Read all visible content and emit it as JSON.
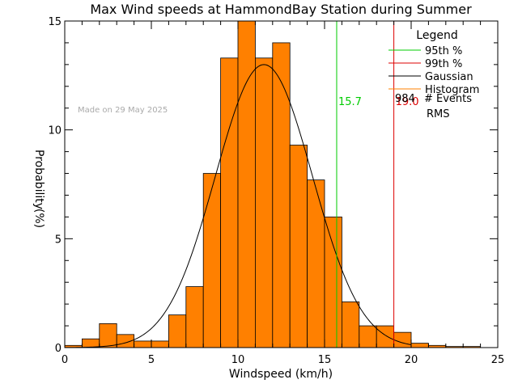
{
  "chart_data": {
    "type": "bar",
    "title": "Max Wind speeds at HammondBay Station during Summer",
    "xlabel": "Windspeed (km/h)",
    "ylabel_top": "Probability",
    "ylabel_bottom": "(%)",
    "watermark": "Made on 29 May 2025",
    "xlim": [
      0,
      25
    ],
    "ylim": [
      0,
      15
    ],
    "xticks": [
      0,
      5,
      10,
      15,
      20,
      25
    ],
    "yticks": [
      0,
      5,
      10,
      15
    ],
    "histogram": {
      "bin_width": 1,
      "bins": [
        {
          "x0": 0,
          "value": 0.1
        },
        {
          "x0": 1,
          "value": 0.4
        },
        {
          "x0": 2,
          "value": 1.1
        },
        {
          "x0": 3,
          "value": 0.6
        },
        {
          "x0": 4,
          "value": 0.3
        },
        {
          "x0": 5,
          "value": 0.3
        },
        {
          "x0": 6,
          "value": 1.5
        },
        {
          "x0": 7,
          "value": 2.8
        },
        {
          "x0": 8,
          "value": 8.0
        },
        {
          "x0": 9,
          "value": 13.3
        },
        {
          "x0": 10,
          "value": 15.0
        },
        {
          "x0": 11,
          "value": 13.3
        },
        {
          "x0": 12,
          "value": 14.0
        },
        {
          "x0": 13,
          "value": 9.3
        },
        {
          "x0": 14,
          "value": 7.7
        },
        {
          "x0": 15,
          "value": 6.0
        },
        {
          "x0": 16,
          "value": 2.1
        },
        {
          "x0": 17,
          "value": 1.0
        },
        {
          "x0": 18,
          "value": 1.0
        },
        {
          "x0": 19,
          "value": 0.7
        },
        {
          "x0": 20,
          "value": 0.2
        },
        {
          "x0": 21,
          "value": 0.1
        },
        {
          "x0": 22,
          "value": 0.05
        },
        {
          "x0": 23,
          "value": 0.05
        }
      ]
    },
    "gaussian": {
      "mean": 11.5,
      "sigma": 2.8,
      "peak": 13.0
    },
    "vlines": [
      {
        "x": 15.7,
        "label": "15.7",
        "color": "#00cc00"
      },
      {
        "x": 19.0,
        "label": "19.0",
        "color": "#dd0000"
      }
    ],
    "legend": {
      "title": "Legend",
      "items": [
        {
          "label": "95th %",
          "color": "#00cc00"
        },
        {
          "label": "99th %",
          "color": "#dd0000"
        },
        {
          "label": "Gaussian",
          "color": "#000000"
        },
        {
          "label": "Histogram",
          "color": "#ff8000"
        }
      ],
      "events_count": "984",
      "events_label": "# Events",
      "rms_label": "RMS"
    },
    "colors": {
      "histogram": "#ff8000",
      "axis": "#000000",
      "watermark": "#aaaaaa"
    }
  }
}
